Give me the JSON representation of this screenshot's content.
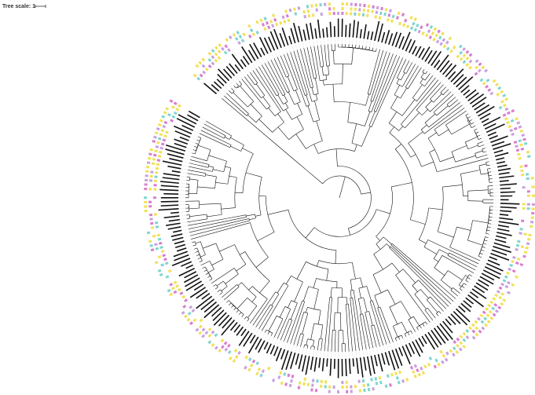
{
  "scale_bar": {
    "label": "Tree scale: 1"
  }
}
